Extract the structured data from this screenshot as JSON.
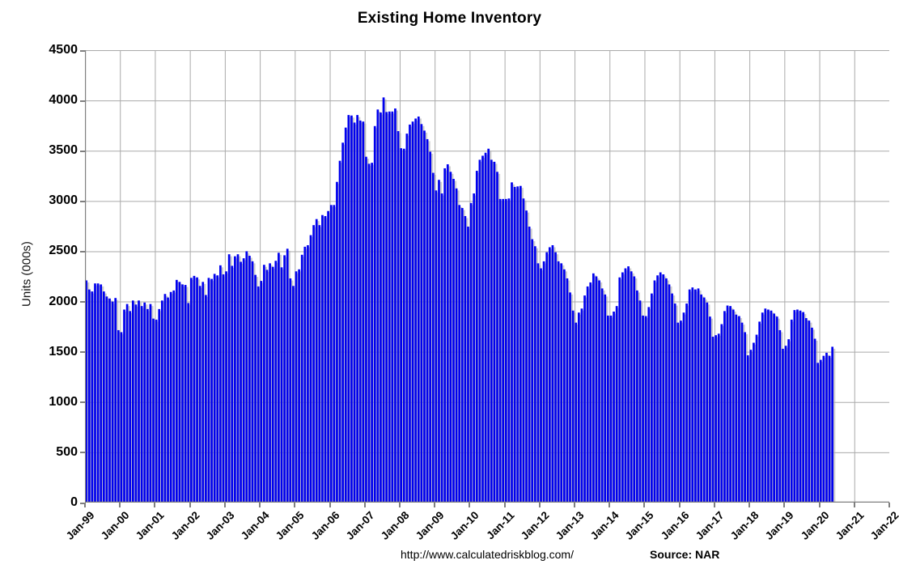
{
  "title": "Existing Home Inventory",
  "footer": {
    "url": "http://www.calculatedriskblog.com/",
    "source": "Source: NAR"
  },
  "chart_data": {
    "type": "bar",
    "title": "Existing Home Inventory",
    "xlabel": "",
    "ylabel": "Units (000s)",
    "ylim": [
      0,
      4500
    ],
    "ytick_step": 500,
    "y_tick_labels": [
      "0",
      "500",
      "1000",
      "1500",
      "2000",
      "2500",
      "3000",
      "3500",
      "4000",
      "4500"
    ],
    "x_tick_labels": [
      "Jan-99",
      "Jan-00",
      "Jan-01",
      "Jan-02",
      "Jan-03",
      "Jan-04",
      "Jan-05",
      "Jan-06",
      "Jan-07",
      "Jan-08",
      "Jan-09",
      "Jan-10",
      "Jan-11",
      "Jan-12",
      "Jan-13",
      "Jan-14",
      "Jan-15",
      "Jan-16",
      "Jan-17",
      "Jan-18",
      "Jan-19",
      "Jan-20",
      "Jan-21",
      "Jan-22"
    ],
    "x_axis_total_months": 276,
    "grid": true,
    "legend": "none",
    "bar_color": "#0000EE",
    "bar_shadow_color": "#B0B0B0",
    "gridline_color": "#AAAAAA",
    "axis_color": "#7F7F7F",
    "series": [
      {
        "name": "Existing Home Inventory, monthly (thousands of units)",
        "start_month": "Jan-1999",
        "end_month": "May-2020",
        "values": [
          2210,
          2120,
          2100,
          2180,
          2180,
          2170,
          2100,
          2050,
          2030,
          2000,
          2035,
          1715,
          1695,
          1920,
          1975,
          1905,
          2010,
          1970,
          2010,
          1955,
          1990,
          1925,
          1975,
          1830,
          1820,
          1925,
          2010,
          2075,
          2040,
          2095,
          2110,
          2215,
          2195,
          2170,
          2165,
          1985,
          2235,
          2255,
          2240,
          2155,
          2195,
          2065,
          2235,
          2225,
          2275,
          2260,
          2360,
          2270,
          2300,
          2470,
          2355,
          2450,
          2470,
          2395,
          2430,
          2500,
          2455,
          2400,
          2265,
          2150,
          2205,
          2365,
          2315,
          2380,
          2345,
          2405,
          2485,
          2340,
          2460,
          2525,
          2230,
          2155,
          2300,
          2320,
          2465,
          2545,
          2560,
          2660,
          2760,
          2820,
          2760,
          2860,
          2850,
          2900,
          2960,
          2960,
          3190,
          3400,
          3580,
          3730,
          3855,
          3850,
          3780,
          3855,
          3800,
          3790,
          3440,
          3370,
          3380,
          3745,
          3910,
          3880,
          4030,
          3885,
          3890,
          3890,
          3920,
          3695,
          3525,
          3520,
          3670,
          3760,
          3790,
          3820,
          3840,
          3765,
          3700,
          3615,
          3490,
          3280,
          3105,
          3210,
          3075,
          3325,
          3365,
          3290,
          3220,
          3125,
          2960,
          2930,
          2850,
          2745,
          2980,
          3075,
          3300,
          3410,
          3450,
          3480,
          3520,
          3410,
          3390,
          3290,
          3020,
          3020,
          3020,
          3025,
          3185,
          3140,
          3145,
          3150,
          3025,
          2905,
          2745,
          2620,
          2550,
          2380,
          2330,
          2400,
          2490,
          2540,
          2560,
          2490,
          2400,
          2380,
          2320,
          2230,
          2090,
          1910,
          1790,
          1890,
          1930,
          2060,
          2150,
          2190,
          2280,
          2250,
          2210,
          2130,
          2070,
          1860,
          1860,
          1900,
          1955,
          2240,
          2290,
          2330,
          2350,
          2300,
          2250,
          2110,
          2010,
          1860,
          1855,
          1945,
          2080,
          2210,
          2260,
          2290,
          2270,
          2230,
          2170,
          2080,
          1980,
          1790,
          1810,
          1890,
          1980,
          2120,
          2140,
          2120,
          2130,
          2070,
          2040,
          1990,
          1850,
          1650,
          1665,
          1680,
          1775,
          1905,
          1960,
          1955,
          1920,
          1870,
          1855,
          1790,
          1695,
          1465,
          1520,
          1590,
          1670,
          1800,
          1890,
          1930,
          1920,
          1910,
          1880,
          1850,
          1715,
          1530,
          1560,
          1625,
          1820,
          1915,
          1920,
          1910,
          1895,
          1835,
          1810,
          1740,
          1630,
          1390,
          1420,
          1460,
          1490,
          1460,
          1550
        ]
      }
    ]
  }
}
